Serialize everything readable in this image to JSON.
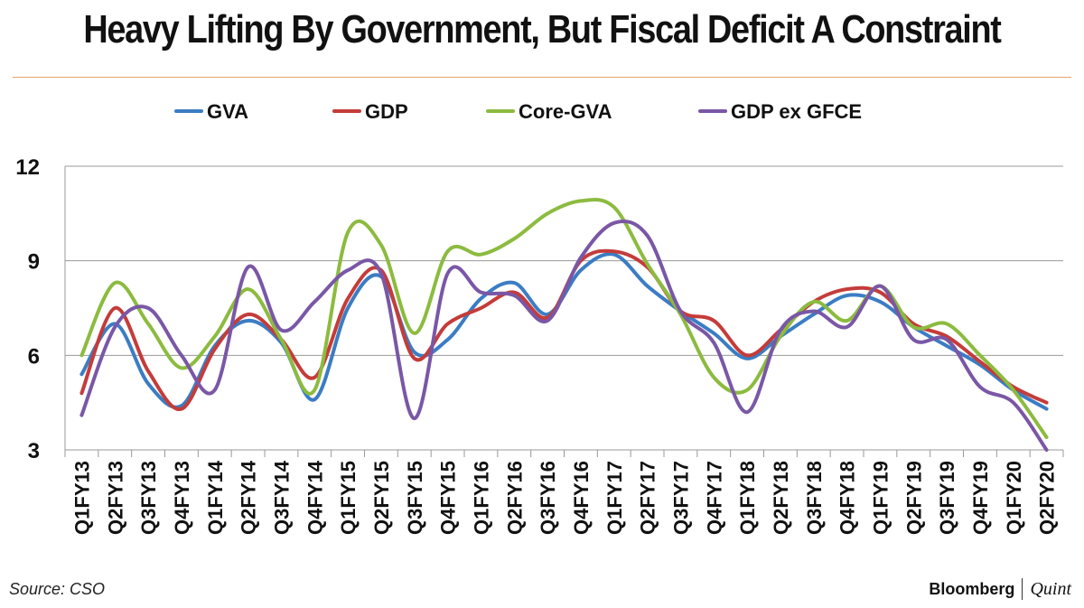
{
  "title": "Heavy Lifting By Government, But Fiscal Deficit A Constraint",
  "source": "Source: CSO",
  "logo": {
    "left": "Bloomberg",
    "right": "Quint"
  },
  "chart_data": {
    "type": "line",
    "smooth": true,
    "ylim": [
      3,
      12
    ],
    "yticks": [
      3,
      6,
      9,
      12
    ],
    "grid": true,
    "legend": "top",
    "categories": [
      "Q1FY13",
      "Q2FY13",
      "Q3FY13",
      "Q4FY13",
      "Q1FY14",
      "Q2FY14",
      "Q3FY14",
      "Q4FY14",
      "Q1FY15",
      "Q2FY15",
      "Q3FY15",
      "Q4FY15",
      "Q1FY16",
      "Q2FY16",
      "Q3FY16",
      "Q4FY16",
      "Q1FY17",
      "Q2FY17",
      "Q3FY17",
      "Q4FY17",
      "Q1FY18",
      "Q2FY18",
      "Q3FY18",
      "Q4FY18",
      "Q1FY19",
      "Q2FY19",
      "Q3FY19",
      "Q4FY19",
      "Q1FY20",
      "Q2FY20"
    ],
    "series": [
      {
        "name": "GVA",
        "color": "#3b7dc4",
        "values": [
          5.4,
          7.0,
          5.1,
          4.4,
          6.3,
          7.1,
          6.4,
          4.6,
          7.5,
          8.5,
          6.1,
          6.5,
          7.8,
          8.3,
          7.3,
          8.7,
          9.2,
          8.2,
          7.4,
          6.7,
          5.9,
          6.6,
          7.3,
          7.9,
          7.7,
          6.9,
          6.3,
          5.7,
          4.9,
          4.3
        ]
      },
      {
        "name": "GDP",
        "color": "#c43c3a",
        "values": [
          4.8,
          7.5,
          5.5,
          4.3,
          6.2,
          7.3,
          6.5,
          5.3,
          7.8,
          8.7,
          5.9,
          7.0,
          7.5,
          8.0,
          7.2,
          9.0,
          9.3,
          8.8,
          7.4,
          7.1,
          6.0,
          6.8,
          7.7,
          8.1,
          8.0,
          7.0,
          6.6,
          5.8,
          5.0,
          4.5
        ]
      },
      {
        "name": "Core-GVA",
        "color": "#8cbb3f",
        "values": [
          6.0,
          8.3,
          7.0,
          5.6,
          6.6,
          8.1,
          6.5,
          4.9,
          9.9,
          9.5,
          6.7,
          9.3,
          9.2,
          9.7,
          10.5,
          10.9,
          10.7,
          8.9,
          7.3,
          5.3,
          4.9,
          6.6,
          7.7,
          7.1,
          8.2,
          6.9,
          7.0,
          6.0,
          4.9,
          3.4
        ]
      },
      {
        "name": "GDP ex GFCE",
        "color": "#7a57a6",
        "values": [
          4.1,
          6.9,
          7.5,
          6.0,
          4.9,
          8.8,
          6.8,
          7.7,
          8.7,
          8.6,
          4.0,
          8.6,
          8.0,
          7.9,
          7.1,
          9.1,
          10.2,
          9.8,
          7.4,
          6.4,
          4.2,
          6.8,
          7.4,
          6.9,
          8.2,
          6.5,
          6.5,
          5.0,
          4.5,
          3.0
        ]
      }
    ]
  }
}
